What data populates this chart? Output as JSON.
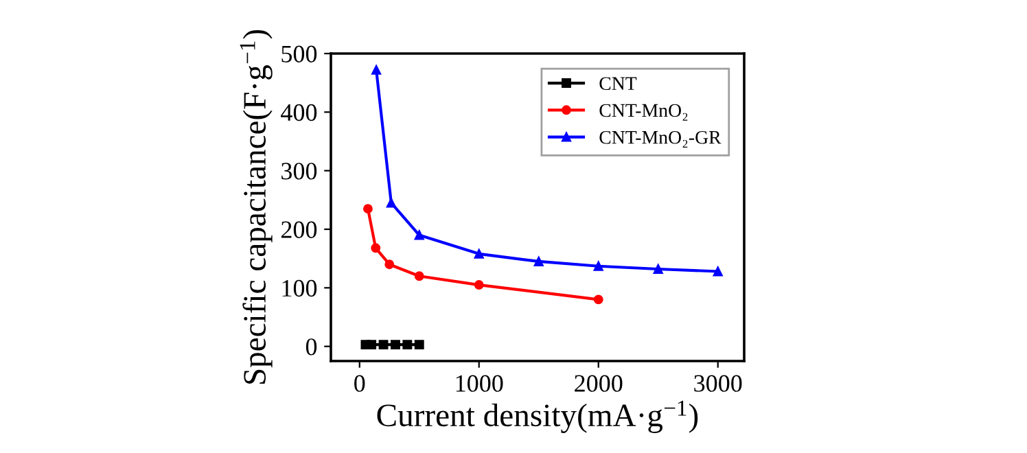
{
  "chart_data": {
    "type": "line",
    "xlabel": "Current density(mA·g$^{−1}$)",
    "ylabel": "Specific capacitance(F·g$^{−1}$)",
    "xlim": [
      -240,
      3220
    ],
    "xticks": [
      0,
      1000,
      2000,
      3000
    ],
    "ylim": [
      -25,
      500
    ],
    "yticks": [
      0,
      100,
      200,
      300,
      400,
      500
    ],
    "grid": false,
    "legend": "top right",
    "series": [
      {
        "name": "CNT",
        "color": "#000000",
        "marker": "square",
        "x": [
          50,
          100,
          200,
          300,
          400,
          500
        ],
        "values": [
          3,
          3,
          3,
          3,
          3,
          3
        ]
      },
      {
        "name": "CNT-MnO₂",
        "color": "#ff0000",
        "marker": "circle",
        "x": [
          70,
          135,
          250,
          500,
          1000,
          2000
        ],
        "values": [
          235,
          168,
          140,
          120,
          105,
          80
        ]
      },
      {
        "name": "CNT-MnO₂-GR",
        "color": "#0000ff",
        "marker": "triangle",
        "x": [
          140,
          265,
          500,
          1000,
          1500,
          2000,
          2500,
          3000
        ],
        "values": [
          472,
          245,
          190,
          158,
          145,
          137,
          132,
          128
        ]
      }
    ]
  }
}
